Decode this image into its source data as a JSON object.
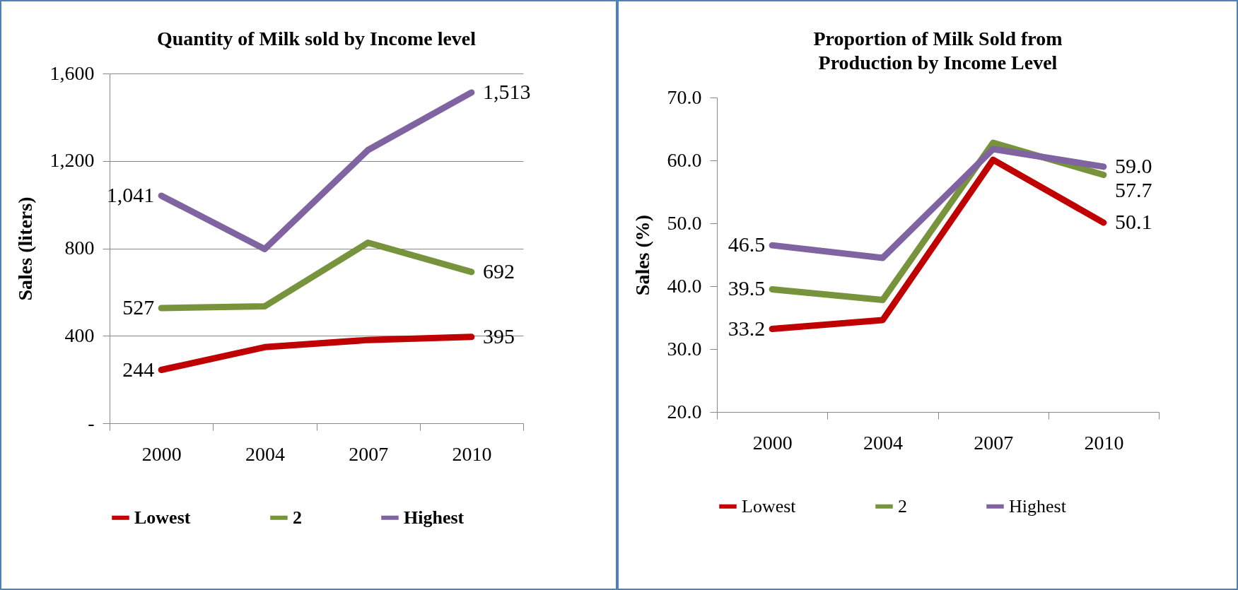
{
  "chart_data": [
    {
      "type": "line",
      "title": "Quantity of Milk sold by Income level",
      "ylabel": "Sales (liters)",
      "categories": [
        "2000",
        "2004",
        "2007",
        "2010"
      ],
      "series": [
        {
          "name": "Lowest",
          "color": "#c00000",
          "values": [
            244,
            348,
            381,
            395
          ],
          "value_labels": [
            "244",
            null,
            null,
            "395"
          ]
        },
        {
          "name": "2",
          "color": "#77933c",
          "values": [
            527,
            535,
            826,
            692
          ],
          "value_labels": [
            "527",
            null,
            null,
            "692"
          ]
        },
        {
          "name": "Highest",
          "color": "#8064a2",
          "values": [
            1041,
            797,
            1250,
            1513
          ],
          "value_labels": [
            "1,041",
            null,
            null,
            "1,513"
          ]
        }
      ],
      "ylim": [
        0,
        1600
      ],
      "yticks": [
        {
          "value": 0,
          "label": "-"
        },
        {
          "value": 400,
          "label": "400"
        },
        {
          "value": 800,
          "label": "800"
        },
        {
          "value": 1200,
          "label": "1,200"
        },
        {
          "value": 1600,
          "label": "1,600"
        }
      ],
      "grid": "y",
      "legend": "bottom",
      "marker": "none",
      "line_style": "solid"
    },
    {
      "type": "line",
      "title": "Proportion of Milk Sold from Production by Income Level",
      "ylabel": "Sales (%)",
      "categories": [
        "2000",
        "2004",
        "2007",
        "2010"
      ],
      "series": [
        {
          "name": "Lowest",
          "color": "#c00000",
          "values": [
            33.2,
            34.6,
            60.1,
            50.1
          ],
          "value_labels": [
            "33.2",
            null,
            null,
            "50.1"
          ]
        },
        {
          "name": "2",
          "color": "#77933c",
          "values": [
            39.5,
            37.8,
            62.8,
            57.7
          ],
          "value_labels": [
            "39.5",
            null,
            null,
            "57.7"
          ]
        },
        {
          "name": "Highest",
          "color": "#8064a2",
          "values": [
            46.5,
            44.5,
            61.8,
            59.0
          ],
          "value_labels": [
            "46.5",
            null,
            null,
            "59.0"
          ]
        }
      ],
      "ylim": [
        20,
        70
      ],
      "yticks": [
        {
          "value": 20,
          "label": "20.0"
        },
        {
          "value": 30,
          "label": "30.0"
        },
        {
          "value": 40,
          "label": "40.0"
        },
        {
          "value": 50,
          "label": "50.0"
        },
        {
          "value": 60,
          "label": "60.0"
        },
        {
          "value": 70,
          "label": "70.0"
        }
      ],
      "grid": false,
      "legend": "bottom",
      "marker": "none",
      "line_style": "solid"
    }
  ]
}
